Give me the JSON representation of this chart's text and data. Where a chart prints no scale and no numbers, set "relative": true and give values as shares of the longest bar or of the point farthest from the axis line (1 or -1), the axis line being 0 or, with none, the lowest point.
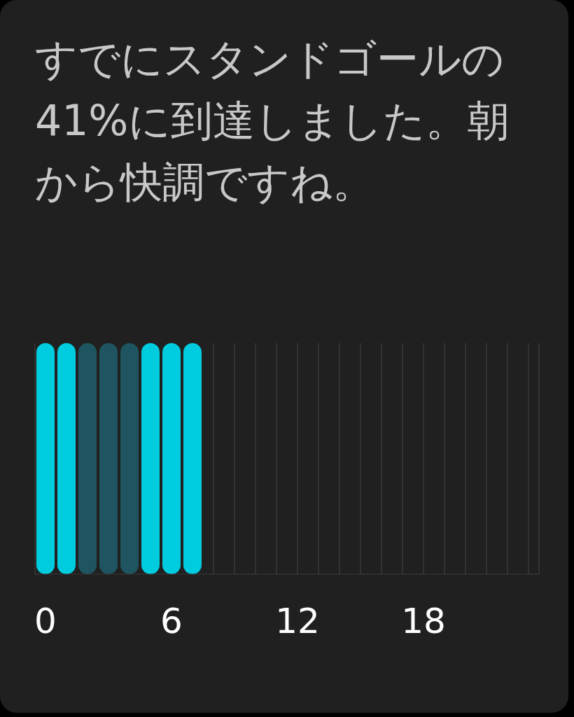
{
  "chart_data": {
    "type": "bar",
    "title": "すでにスタンドゴールの41%に到達しました。朝から快調ですね。",
    "categories": [
      "0",
      null,
      null,
      null,
      null,
      null,
      "6",
      null,
      null,
      null,
      null,
      null,
      "12",
      null,
      null,
      null,
      null,
      null,
      "18",
      null,
      null,
      null,
      null,
      null
    ],
    "values": [
      1,
      1,
      1,
      1,
      1,
      1,
      1,
      1,
      null,
      null,
      null,
      null,
      null,
      null,
      null,
      null,
      null,
      null,
      null,
      null,
      null,
      null,
      null,
      null
    ],
    "colors": [
      "#00cce0",
      "#00cce0",
      "#1e5560",
      "#1e5560",
      "#1e5560",
      "#00cce0",
      "#00cce0",
      "#00cce0",
      "#00cce0",
      "#00cce0",
      "#00cce0",
      "#00cce0",
      "#00cce0",
      "#00cce0",
      "#00cce0",
      "#00cce0",
      "#00cce0",
      "#00cce0",
      "#00cce0",
      "#00cce0",
      "#00cce0",
      "#00cce0",
      "#00cce0",
      "#00cce0"
    ],
    "relative": true,
    "grid": "x"
  }
}
